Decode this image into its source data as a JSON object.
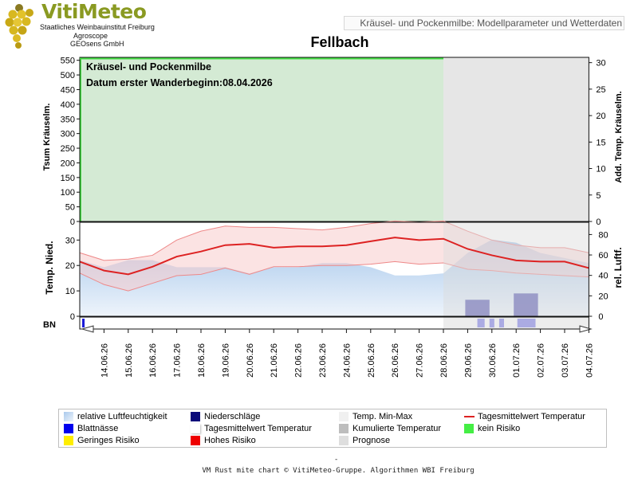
{
  "header": {
    "logo_title": "VitiMeteo",
    "logo_lines": [
      "Staatliches Weinbauinstitut Freiburg",
      "Agroscope",
      "GEOsens GmbH"
    ],
    "subtitle": "Kräusel- und Pockenmilbe: Modellparameter und Wetterdaten"
  },
  "page_title": "Fellbach",
  "footer": {
    "dash": "-",
    "credit": "VM Rust mite chart © VitiMeteo-Gruppe. Algorithmen WBI Freiburg"
  },
  "colors": {
    "kein_risiko": "#44dd44",
    "geringes_risiko": "#ffee00",
    "hohes_risiko": "#ee1111",
    "tagesmittel": "#dd2222",
    "niederschlag": "#3333aa",
    "blattnaesse": "#1a3cd8",
    "luftfeuchte": "#a8c8ea",
    "temp_minmax": "#f7cccc",
    "prognose": "#dedede"
  },
  "chart_data": [
    {
      "type": "area",
      "panel": "top",
      "annotation_title": "Kräusel- und Pockenmilbe",
      "annotation_date": "Datum  erster Wanderbeginn:08.04.2026",
      "ylabel_left": "Tsum Kräuselm.",
      "ylabel_right": "Add. Temp. Kräuselm.",
      "yticks_left": [
        "0",
        "50",
        "100",
        "150",
        "200",
        "250",
        "300",
        "350",
        "400",
        "450",
        "500",
        "550"
      ],
      "yticks_right": [
        "0",
        "5",
        "10",
        "15",
        "20",
        "25",
        "30"
      ],
      "ylim_left": [
        0,
        560
      ],
      "ylim_right": [
        0,
        31
      ],
      "risk_bands": [
        {
          "name": "kein Risiko",
          "from": "14.06.26",
          "to": "28.06.26"
        }
      ]
    },
    {
      "type": "line",
      "panel": "middle",
      "ylabel_left": "Temp. Nied.",
      "ylabel_right": "rel. Luftf.",
      "yticks_left": [
        "0",
        "10",
        "20",
        "30"
      ],
      "yticks_right": [
        "0",
        "20",
        "40",
        "60",
        "80"
      ],
      "ylim_left": [
        0,
        37
      ],
      "ylim_right": [
        0,
        92
      ],
      "x": [
        "13.06.26",
        "14.06.26",
        "15.06.26",
        "16.06.26",
        "17.06.26",
        "18.06.26",
        "19.06.26",
        "20.06.26",
        "21.06.26",
        "22.06.26",
        "23.06.26",
        "24.06.26",
        "25.06.26",
        "26.06.26",
        "27.06.26",
        "28.06.26",
        "29.06.26",
        "30.06.26",
        "01.07.26",
        "02.07.26",
        "03.07.26",
        "04.07.26"
      ],
      "series": [
        {
          "name": "Tagesmittelwert Temperatur",
          "values": [
            21.5,
            18,
            16.5,
            19.5,
            23.5,
            25.5,
            28,
            28.5,
            27,
            27.5,
            27.5,
            28,
            29.5,
            31,
            30,
            30.5,
            26.5,
            24,
            22,
            21.5,
            21.5,
            19
          ]
        },
        {
          "name": "Temp. Min-Max",
          "min": [
            17,
            12.5,
            10,
            13,
            16,
            16.5,
            19,
            16.5,
            19.5,
            19.5,
            20,
            20,
            20.5,
            21.5,
            20.5,
            21,
            18.5,
            18,
            17,
            16.5,
            16,
            15.5
          ],
          "max": [
            25,
            22,
            22.5,
            24,
            30,
            33.5,
            35.5,
            35,
            35,
            34.5,
            34,
            35,
            36.5,
            37.5,
            37,
            37.5,
            33.5,
            30,
            28,
            27,
            27,
            25
          ]
        },
        {
          "name": "relative Luftfeuchtigkeit",
          "values": [
            55,
            48,
            55,
            55,
            48,
            48,
            48,
            42,
            48,
            48,
            52,
            52,
            48,
            40,
            40,
            42,
            62,
            75,
            72,
            62,
            57,
            52
          ]
        },
        {
          "name": "Niederschläge",
          "values": [
            0,
            0,
            0,
            0,
            0,
            0,
            0,
            0,
            0,
            0,
            0,
            0,
            0,
            0,
            0,
            0,
            6.5,
            0,
            9,
            0,
            0,
            0
          ]
        }
      ],
      "forecast_from": "28.06.26"
    },
    {
      "type": "bar",
      "panel": "bottom",
      "ylabel_left": "BN",
      "series": [
        {
          "name": "Blattnässe",
          "intervals_days": [
            [
              0.1,
              0.2
            ],
            [
              16.4,
              16.7
            ],
            [
              16.9,
              17.1
            ],
            [
              17.3,
              17.5
            ],
            [
              18.05,
              18.8
            ]
          ]
        }
      ]
    }
  ],
  "x_axis": {
    "tick_labels": [
      "14.06.26",
      "15.06.26",
      "16.06.26",
      "17.06.26",
      "18.06.26",
      "19.06.26",
      "20.06.26",
      "21.06.26",
      "22.06.26",
      "23.06.26",
      "24.06.26",
      "25.06.26",
      "26.06.26",
      "27.06.26",
      "28.06.26",
      "29.06.26",
      "30.06.26",
      "01.07.26",
      "02.07.26",
      "03.07.26",
      "04.07.26"
    ]
  },
  "legend": [
    {
      "label": "relative Luftfeuchtigkeit",
      "color": "#a8c8ea",
      "style": "gradient"
    },
    {
      "label": "Niederschläge",
      "color": "#0a0a7a",
      "style": "box"
    },
    {
      "label": "Temp. Min-Max",
      "color": "#f0f0f0",
      "style": "box"
    },
    {
      "label": "Tagesmittelwert Temperatur",
      "color": "#dd2222",
      "style": "line"
    },
    {
      "label": "Blattnässe",
      "color": "#0000ee",
      "style": "box"
    },
    {
      "label": "Tagesmittelwert Temperatur",
      "color": "#ffffff",
      "style": "shadow"
    },
    {
      "label": "Kumulierte Temperatur",
      "color": "#bdbdbd",
      "style": "box"
    },
    {
      "label": "kein Risiko",
      "color": "#44ee44",
      "style": "box"
    },
    {
      "label": "Geringes Risiko",
      "color": "#ffee00",
      "style": "box"
    },
    {
      "label": "Hohes Risiko",
      "color": "#ee0000",
      "style": "box"
    },
    {
      "label": "Prognose",
      "color": "#dedede",
      "style": "box"
    }
  ]
}
